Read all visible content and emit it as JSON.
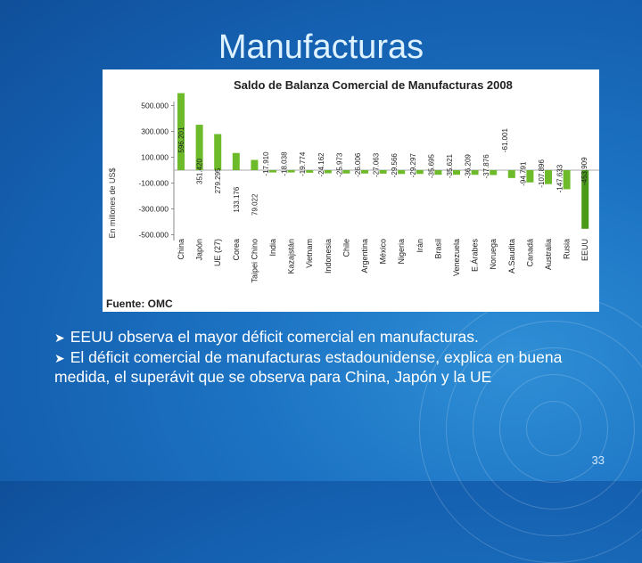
{
  "slide": {
    "title": "Manufacturas",
    "bullets": [
      "EEUU observa el mayor déficit comercial en manufacturas.",
      "El déficit comercial de manufacturas estadounidense, explica en buena medida, el superávit que se observa para China, Japón y la UE"
    ],
    "page_number": "33",
    "source": "Fuente: OMC"
  },
  "chart_data": {
    "type": "bar",
    "title": "Saldo de Balanza Comercial de Manufacturas 2008",
    "ylabel": "En millones de US$",
    "xlabel": "",
    "ylim": [
      -600000,
      600000
    ],
    "yticks": [
      500000,
      300000,
      100000,
      -100000,
      -300000,
      -500000
    ],
    "ytick_labels": [
      "500.000",
      "300.000",
      "100.000",
      "-100.000",
      "-300.000",
      "-500.000"
    ],
    "categories": [
      "China",
      "Japón",
      "UE (27)",
      "Corea",
      "Taipei Chino",
      "India",
      "Kazajstán",
      "Vietnam",
      "Indonesia",
      "Chile",
      "Argentina",
      "México",
      "Nigeria",
      "Irán",
      "Brasil",
      "Venezuela",
      "E.Árabes",
      "Noruega",
      "A.Saudita",
      "Canadá",
      "Australia",
      "Rusia",
      "EEUU"
    ],
    "values": [
      596201,
      351420,
      279295,
      133176,
      79022,
      -17910,
      -18038,
      -19774,
      -24162,
      -25973,
      -26006,
      -27063,
      -29566,
      -29297,
      -35695,
      -35621,
      -36209,
      -37876,
      -61001,
      -94791,
      -107896,
      -147633,
      -453909
    ],
    "value_labels": [
      "596.201",
      "351.420",
      "279.295",
      "133.176",
      "79.022",
      "-17.910",
      "-18.038",
      "-19.774",
      "-24.162",
      "-25.973",
      "-26.006",
      "-27.063",
      "-29.566",
      "-29.297",
      "-35.695",
      "-35.621",
      "-36.209",
      "-37.876",
      "-61.001",
      "-94.791",
      "-107.896",
      "-147.633",
      "-453.909"
    ],
    "bar_color": "#6dbb2a",
    "bar_color_last": "#4a9a1a",
    "grid": false,
    "legend": "none"
  }
}
